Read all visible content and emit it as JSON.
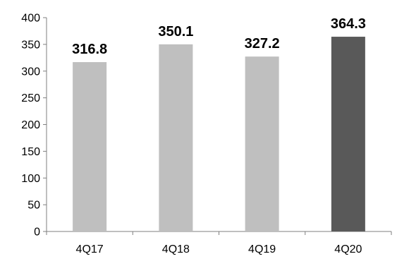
{
  "chart_data": {
    "type": "bar",
    "categories": [
      "4Q17",
      "4Q18",
      "4Q19",
      "4Q20"
    ],
    "values": [
      316.8,
      350.1,
      327.2,
      364.3
    ],
    "value_labels": [
      "316.8",
      "350.1",
      "327.2",
      "364.3"
    ],
    "yticks": [
      0,
      50,
      100,
      150,
      200,
      250,
      300,
      350,
      400
    ],
    "ylim": [
      0,
      400
    ],
    "title": "",
    "xlabel": "",
    "ylabel": "",
    "grid": false,
    "legend": "none",
    "colors": {
      "bar_default": "#bfbfbf",
      "bar_highlight": "#595959",
      "axis": "#7f7f7f",
      "text": "#000000"
    },
    "highlight_index": 3
  }
}
